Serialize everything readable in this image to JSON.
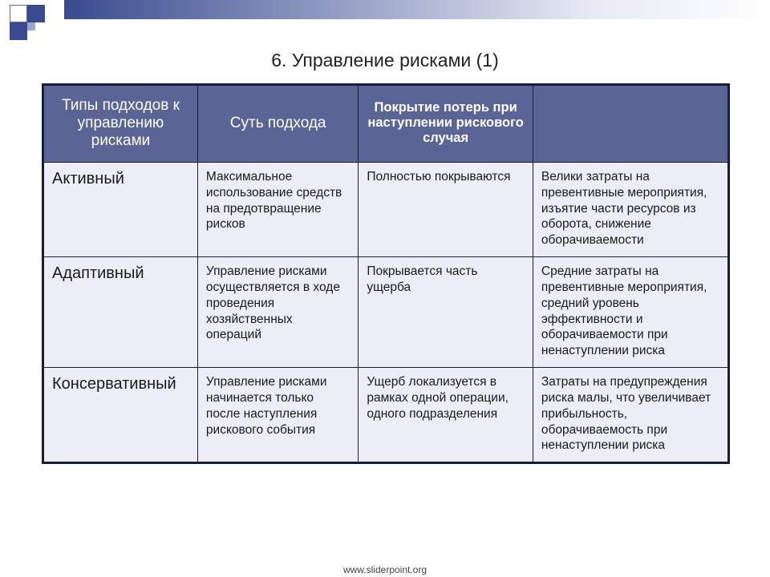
{
  "title": "6. Управление рисками (1)",
  "footer": "www.sliderpoint.org",
  "table": {
    "headers": {
      "col0": "Типы подходов к управлению рисками",
      "col1": "Суть подхода",
      "col2": "Покрытие потерь при наступлении рискового случая",
      "col3": ""
    },
    "rows": {
      "r0": {
        "approach": "Активный",
        "essence": "Максимальное использование средств на предотвращение рисков",
        "coverage": "Полностью покрываются",
        "note": "Велики затраты на превентивные мероприятия, изъятие части ресурсов из оборота, снижение оборачиваемости"
      },
      "r1": {
        "approach": "Адаптивный",
        "essence": "Управление рисками осуществляется в ходе проведения хозяйственных операций",
        "coverage": "Покрывается часть ущерба",
        "note": "Средние затраты на превентивные мероприятия, средний уровень эффективности и оборачиваемости при ненаступлении  риска"
      },
      "r2": {
        "approach": "Консервативный",
        "essence": "Управление рисками начинается только после наступления рискового события",
        "coverage": "Ущерб локализуется  в рамках  одной операции,  одного подразделения",
        "note": "Затраты на предупреждения риска малы, что увеличивает прибыльность, оборачиваемость при ненаступлении  риска"
      }
    }
  },
  "colors": {
    "header_bg": "#5a6495",
    "header_text": "#ffffff",
    "cell_bg": "#ecedf6",
    "border": "#1a1d3a",
    "accent_dark": "#394b8e"
  }
}
